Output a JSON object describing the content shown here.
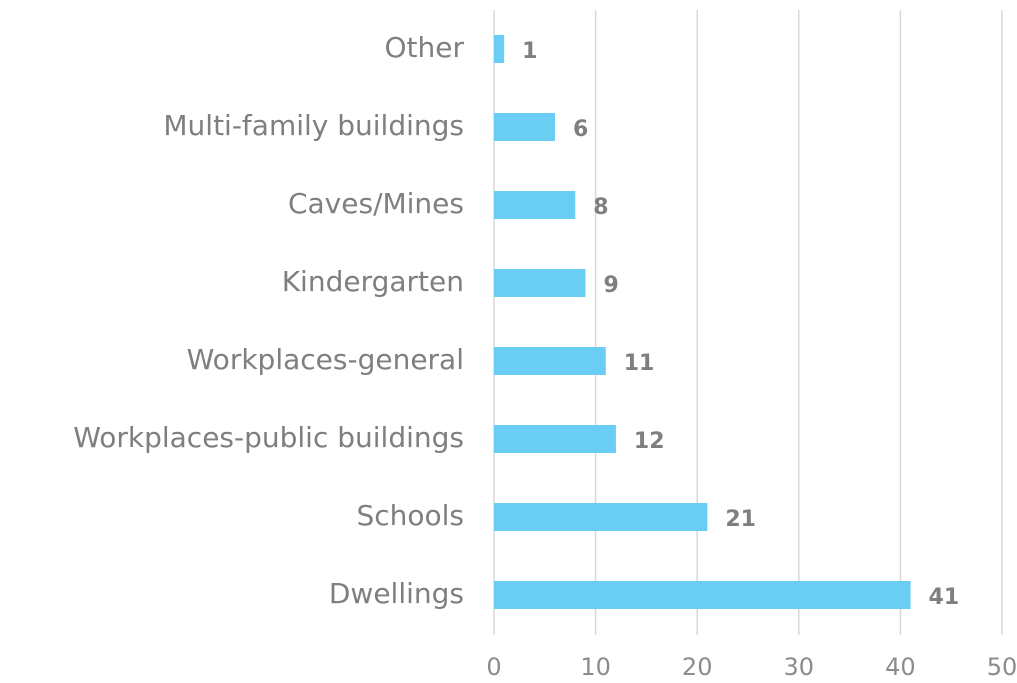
{
  "chart_data": {
    "type": "bar",
    "orientation": "horizontal",
    "categories": [
      "Other",
      "Multi-family buildings",
      "Caves/Mines",
      "Kindergarten",
      "Workplaces-general",
      "Workplaces-public buildings",
      "Schools",
      "Dwellings"
    ],
    "values": [
      1,
      6,
      8,
      9,
      11,
      12,
      21,
      41
    ],
    "color": "#69cdf4",
    "xlim": [
      0,
      50
    ],
    "xticks": [
      0,
      10,
      20,
      30,
      40,
      50
    ],
    "grid": true
  }
}
